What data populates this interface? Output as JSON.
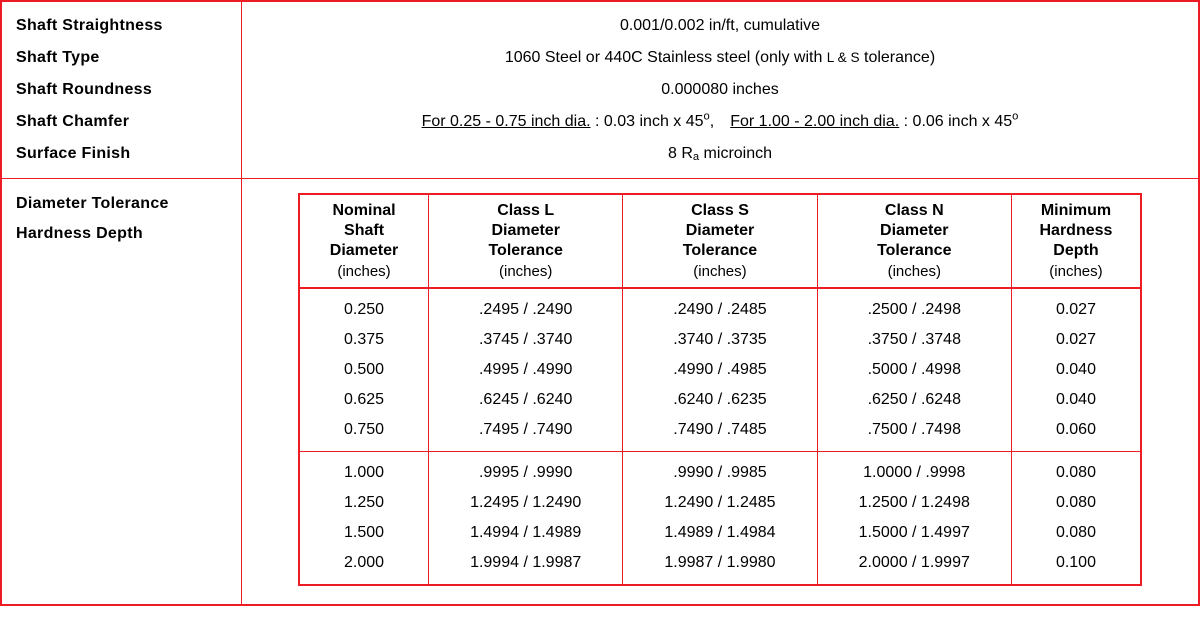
{
  "colors": {
    "outline": "#ed1c24",
    "background": "#ffffff",
    "text": "#000000"
  },
  "typography": {
    "base_fontsize_pt": 12,
    "header_weight": "bold"
  },
  "properties": {
    "shaft_straightness": {
      "label": "Shaft  Straightness",
      "value": "0.001/0.002 in/ft,  cumulative"
    },
    "shaft_type": {
      "label": "Shaft  Type",
      "value_prefix": "1060 Steel or 440C Stainless steel (only with ",
      "value_small": "L & S",
      "value_suffix": " tolerance)"
    },
    "shaft_roundness": {
      "label": "Shaft  Roundness",
      "value": "0.000080 inches"
    },
    "shaft_chamfer": {
      "label": "Shaft  Chamfer",
      "part1_label": "For 0.25 - 0.75 inch dia.",
      "part1_value": " : 0.03 inch x 45",
      "part2_label": "For 1.00 - 2.00 inch dia.",
      "part2_value": " : 0.06 inch x 45",
      "degree": "o",
      "separator": ", "
    },
    "surface_finish": {
      "label": "Surface  Finish",
      "value_prefix": "8  R",
      "value_sub": "a",
      "value_suffix": " microinch"
    },
    "diameter_tol_label": "Diameter  Tolerance",
    "hardness_depth_label": "Hardness  Depth"
  },
  "tolerance_table": {
    "type": "table",
    "unit_label": "(inches)",
    "column_widths_pct": [
      14,
      21,
      21,
      21,
      14
    ],
    "columns": [
      {
        "l1": "Nominal",
        "l2": "Shaft",
        "l3": "Diameter"
      },
      {
        "l1": "Class L",
        "l2": "Diameter",
        "l3": "Tolerance"
      },
      {
        "l1": "Class S",
        "l2": "Diameter",
        "l3": "Tolerance"
      },
      {
        "l1": "Class N",
        "l2": "Diameter",
        "l3": "Tolerance"
      },
      {
        "l1": "Minimum",
        "l2": "Hardness",
        "l3": "Depth"
      }
    ],
    "groups": [
      {
        "rows": [
          [
            "0.250",
            ".2495 / .2490",
            ".2490 / .2485",
            ".2500 / .2498",
            "0.027"
          ],
          [
            "0.375",
            ".3745 / .3740",
            ".3740 / .3735",
            ".3750 / .3748",
            "0.027"
          ],
          [
            "0.500",
            ".4995 / .4990",
            ".4990 / .4985",
            ".5000 / .4998",
            "0.040"
          ],
          [
            "0.625",
            ".6245 / .6240",
            ".6240 / .6235",
            ".6250 / .6248",
            "0.040"
          ],
          [
            "0.750",
            ".7495 / .7490",
            ".7490 / .7485",
            ".7500 / .7498",
            "0.060"
          ]
        ]
      },
      {
        "rows": [
          [
            "1.000",
            ".9995 / .9990",
            ".9990 / .9985",
            "1.0000 / .9998",
            "0.080"
          ],
          [
            "1.250",
            "1.2495 / 1.2490",
            "1.2490 / 1.2485",
            "1.2500 / 1.2498",
            "0.080"
          ],
          [
            "1.500",
            "1.4994 / 1.4989",
            "1.4989 / 1.4984",
            "1.5000 / 1.4997",
            "0.080"
          ],
          [
            "2.000",
            "1.9994 / 1.9987",
            "1.9987 / 1.9980",
            "2.0000 / 1.9997",
            "0.100"
          ]
        ]
      }
    ]
  }
}
